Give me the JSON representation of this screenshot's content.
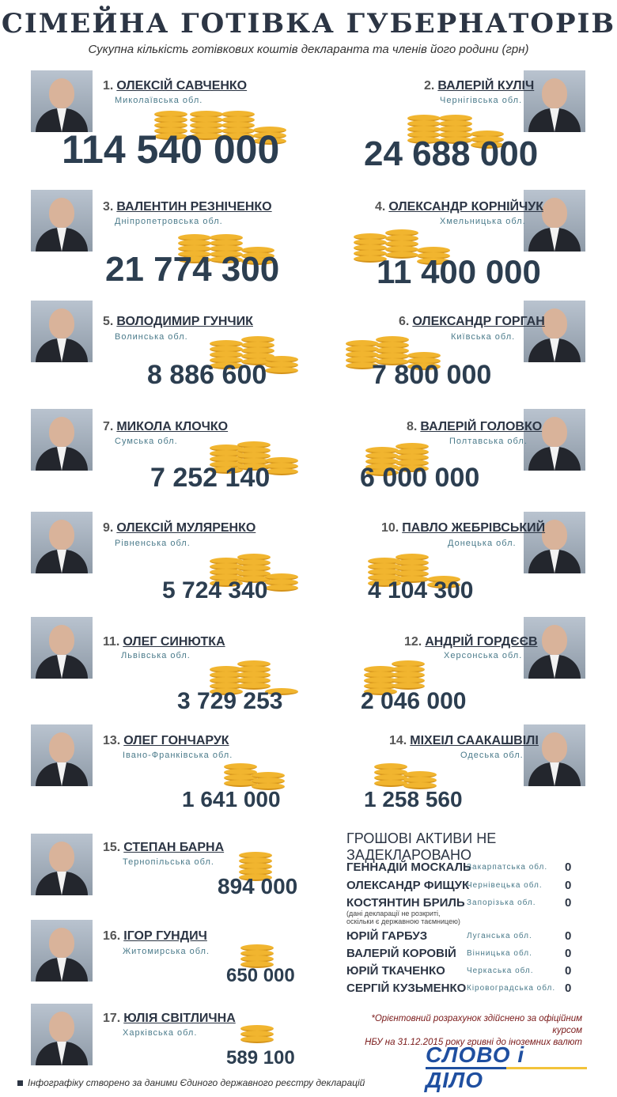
{
  "title": "СІМЕЙНА ГОТІВКА ГУБЕРНАТОРІВ",
  "subtitle": "Сукупна кількість готівкових коштів декларанта та членів його родини (грн)",
  "governors": [
    {
      "rank": "1.",
      "name": "ОЛЕКСІЙ САВЧЕНКО",
      "region": "Миколаївська обл.",
      "amount": "114 540 000"
    },
    {
      "rank": "2.",
      "name": "ВАЛЕРІЙ КУЛІЧ",
      "region": "Чернігівська обл.",
      "amount": "24 688 000"
    },
    {
      "rank": "3.",
      "name": "ВАЛЕНТИН РЕЗНІЧЕНКО",
      "region": "Дніпропетровська обл.",
      "amount": "21 774 300"
    },
    {
      "rank": "4.",
      "name": "ОЛЕКСАНДР КОРНІЙЧУК",
      "region": "Хмельницька обл.",
      "amount": "11 400 000"
    },
    {
      "rank": "5.",
      "name": "ВОЛОДИМИР ГУНЧИК",
      "region": "Волинська обл.",
      "amount": "8 886 600"
    },
    {
      "rank": "6.",
      "name": "ОЛЕКСАНДР ГОРГАН",
      "region": "Київська обл.",
      "amount": "7 800 000"
    },
    {
      "rank": "7.",
      "name": "МИКОЛА КЛОЧКО",
      "region": "Сумська обл.",
      "amount": "7 252 140"
    },
    {
      "rank": "8.",
      "name": "ВАЛЕРІЙ ГОЛОВКО",
      "region": "Полтавська обл.",
      "amount": "6 000 000"
    },
    {
      "rank": "9.",
      "name": "ОЛЕКСІЙ МУЛЯРЕНКО",
      "region": "Рівненська обл.",
      "amount": "5 724 340"
    },
    {
      "rank": "10.",
      "name": "ПАВЛО ЖЕБРІВСЬКИЙ",
      "region": "Донецька обл.",
      "amount": "4 104 300"
    },
    {
      "rank": "11.",
      "name": "ОЛЕГ СИНЮТКА",
      "region": "Львівська обл.",
      "amount": "3 729 253"
    },
    {
      "rank": "12.",
      "name": "АНДРІЙ ГОРДЄЄВ",
      "region": "Херсонська обл.",
      "amount": "2 046 000"
    },
    {
      "rank": "13.",
      "name": "ОЛЕГ ГОНЧАРУК",
      "region": "Івано-Франківська обл.",
      "amount": "1 641 000"
    },
    {
      "rank": "14.",
      "name": "МІХЕІЛ СААКАШВІЛІ",
      "region": "Одеська обл.",
      "amount": "1 258 560"
    },
    {
      "rank": "15.",
      "name": "СТЕПАН БАРНА",
      "region": "Тернопільська обл.",
      "amount": "894 000"
    },
    {
      "rank": "16.",
      "name": "ІГОР ГУНДИЧ",
      "region": "Житомирська обл.",
      "amount": "650 000"
    },
    {
      "rank": "17.",
      "name": "ЮЛІЯ СВІТЛИЧНА",
      "region": "Харківська обл.",
      "amount": "589 100"
    }
  ],
  "undeclared": {
    "heading": "ГРОШОВІ АКТИВИ НЕ ЗАДЕКЛАРОВАНО",
    "rows": [
      {
        "name": "ГЕННАДІЙ МОСКАЛЬ",
        "region": "Закарпатська обл.",
        "value": "0"
      },
      {
        "name": "ОЛЕКСАНДР ФИЩУК",
        "region": "Чернівецька обл.",
        "value": "0"
      },
      {
        "name": "КОСТЯНТИН БРИЛЬ",
        "region": "Запорізька обл.",
        "value": "0"
      },
      {
        "name": "ЮРІЙ ГАРБУЗ",
        "region": "Луганська обл.",
        "value": "0"
      },
      {
        "name": "ВАЛЕРІЙ КОРОВІЙ",
        "region": "Вінницька обл.",
        "value": "0"
      },
      {
        "name": "ЮРІЙ ТКАЧЕНКО",
        "region": "Черкаська обл.",
        "value": "0"
      },
      {
        "name": "СЕРГІЙ КУЗЬМЕНКО",
        "region": "Кіровоградська обл.",
        "value": "0"
      }
    ],
    "note_line1": "(дані декларації не розкриті,",
    "note_line2": "оскільки є державною таємницею)"
  },
  "footnote_line1": "*Орієнтовний розрахунок здійснено за офіційним курсом",
  "footnote_line2": "НБУ на 31.12.2015 року гривні до іноземних валют",
  "logo": "СЛОВО і ДІЛО",
  "credit": "Інфографіку створено за даними Єдиного державного реєстру декларацій",
  "colors": {
    "coin": "#f1b52f",
    "coin_edge": "#d4931a",
    "amount": "#2c3e50",
    "region": "#4a7a8a",
    "logo_blue": "#1f4fa0",
    "logo_yellow": "#f3c33a"
  }
}
